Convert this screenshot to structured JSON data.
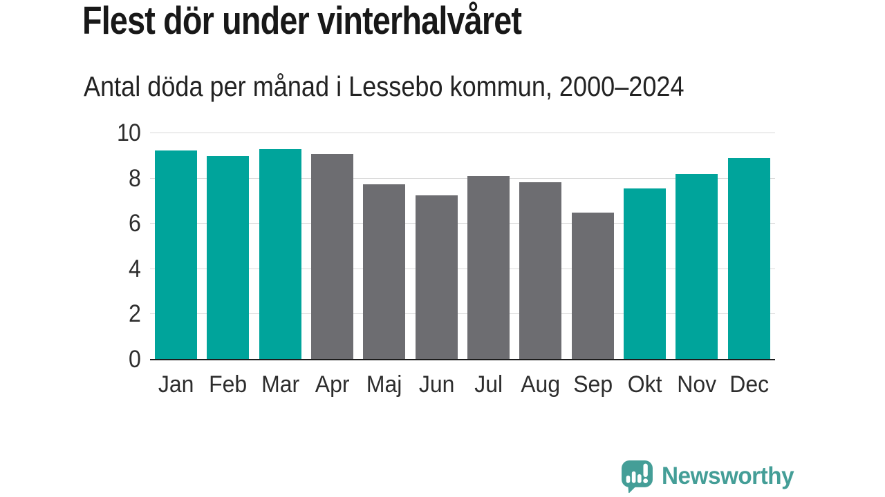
{
  "title": "Flest dör under vinterhalvåret",
  "subtitle": "Antal döda per månad i Lessebo kommun, 2000–2024",
  "chart_data": {
    "type": "bar",
    "title": "Flest dör under vinterhalvåret",
    "subtitle": "Antal döda per månad i Lessebo kommun, 2000–2024",
    "categories": [
      "Jan",
      "Feb",
      "Mar",
      "Apr",
      "Maj",
      "Jun",
      "Jul",
      "Aug",
      "Sep",
      "Okt",
      "Nov",
      "Dec"
    ],
    "values": [
      9.25,
      9.0,
      9.3,
      9.1,
      7.75,
      7.25,
      8.1,
      7.85,
      6.5,
      7.55,
      8.2,
      8.9
    ],
    "bar_colors": [
      "#00a49b",
      "#00a49b",
      "#00a49b",
      "#6d6d71",
      "#6d6d71",
      "#6d6d71",
      "#6d6d71",
      "#6d6d71",
      "#6d6d71",
      "#00a49b",
      "#00a49b",
      "#00a49b"
    ],
    "xlabel": "",
    "ylabel": "",
    "ylim": [
      0,
      10
    ],
    "yticks": [
      0,
      2,
      4,
      6,
      8,
      10
    ],
    "grid": true,
    "legend": false
  },
  "colors": {
    "winter_bar": "#00a49b",
    "summer_bar": "#6d6d71",
    "gridline": "#d8d8d8",
    "axis_line": "#1c1c1c",
    "text": "#2d2d2d",
    "logo_teal": "#449e97"
  },
  "branding": {
    "logo_text": "Newsworthy",
    "logo_icon": "bar-chart-speech-bubble-icon"
  }
}
